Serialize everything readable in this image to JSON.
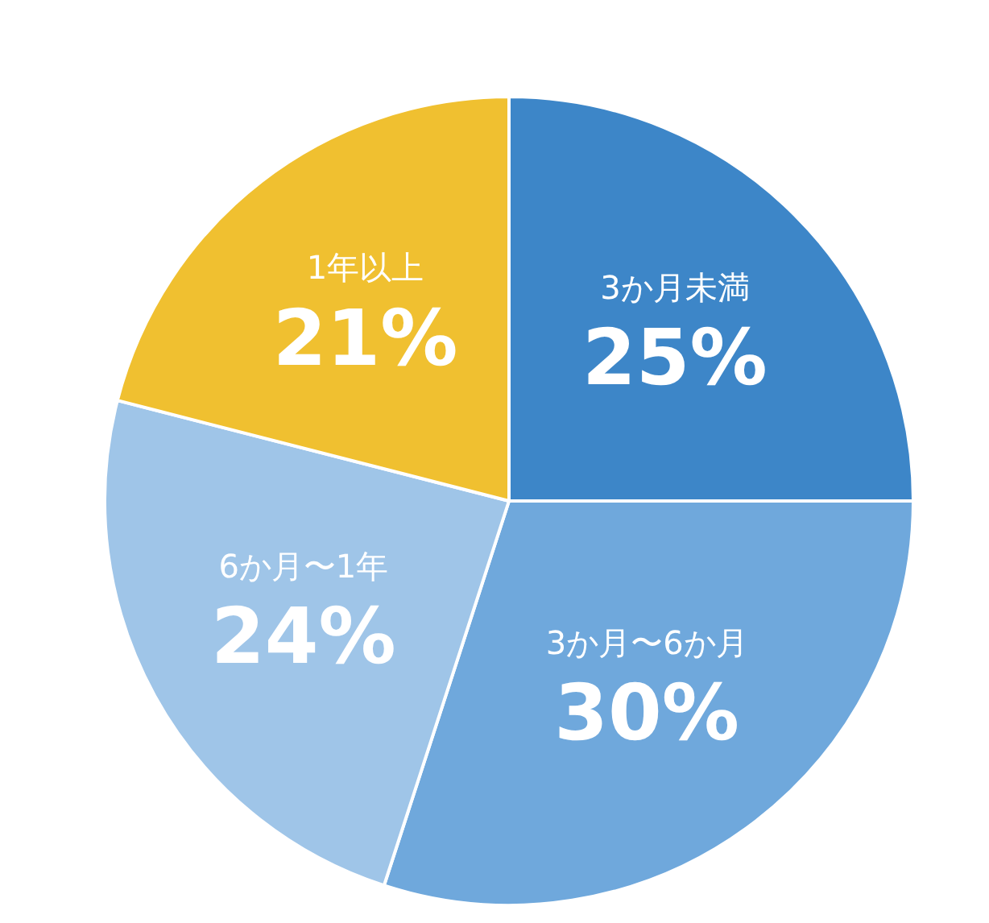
{
  "chart_data": {
    "type": "pie",
    "categories": [
      "3か月未満",
      "3か月〜6か月",
      "6か月〜1年",
      "1年以上"
    ],
    "values": [
      25,
      30,
      24,
      21
    ],
    "colors": [
      "#3d86c8",
      "#6fa8dc",
      "#9fc5e8",
      "#f0c030"
    ],
    "value_labels": [
      "25%",
      "30%",
      "24%",
      "21%"
    ],
    "legend": false
  }
}
